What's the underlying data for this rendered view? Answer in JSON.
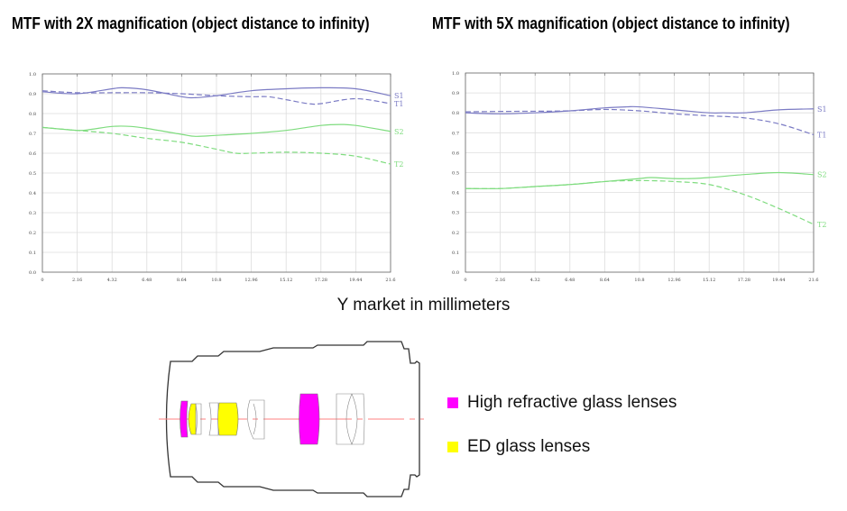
{
  "colors": {
    "series1": "#7b7bc4",
    "series2": "#7fdc7f",
    "grid": "#dddddd",
    "high_refractive": "#ff00ff",
    "ed": "#ffff00",
    "axis_line": "#ff8080"
  },
  "chart_data": [
    {
      "type": "line",
      "title": "MTF with 2X magnification (object distance to infinity)",
      "xlim": [
        0,
        21.6
      ],
      "ylim": [
        0,
        1.0
      ],
      "grid": true,
      "x_ticks": [
        "0",
        "2.16",
        "4.32",
        "6.48",
        "8.64",
        "10.8",
        "12.96",
        "15.12",
        "17.28",
        "19.44",
        "21.6"
      ],
      "y_ticks": [
        "0.0",
        "0.1",
        "0.2",
        "0.3",
        "0.4",
        "0.5",
        "0.6",
        "0.7",
        "0.8",
        "0.9",
        "1.0"
      ],
      "series": [
        {
          "name": "S1",
          "style": "solid",
          "color": "series1",
          "x": [
            0,
            2.16,
            4.32,
            5,
            6.48,
            8.64,
            9.5,
            10.8,
            12.96,
            15.12,
            17.28,
            19.44,
            21.6
          ],
          "y": [
            0.91,
            0.9,
            0.925,
            0.93,
            0.92,
            0.885,
            0.88,
            0.89,
            0.915,
            0.925,
            0.93,
            0.925,
            0.89
          ]
        },
        {
          "name": "T1",
          "style": "dashed",
          "color": "series1",
          "x": [
            0,
            2.16,
            4.32,
            6.48,
            8.64,
            10.8,
            12.96,
            14,
            15.12,
            16.5,
            17.28,
            19.44,
            21.6
          ],
          "y": [
            0.915,
            0.905,
            0.905,
            0.905,
            0.9,
            0.89,
            0.885,
            0.885,
            0.87,
            0.85,
            0.85,
            0.875,
            0.85
          ]
        },
        {
          "name": "S2",
          "style": "solid",
          "color": "series2",
          "x": [
            0,
            2.16,
            3,
            4.32,
            5.5,
            6.48,
            8.64,
            9.5,
            10.8,
            12.96,
            15.12,
            17.28,
            18.5,
            19.44,
            21.6
          ],
          "y": [
            0.73,
            0.715,
            0.72,
            0.735,
            0.735,
            0.725,
            0.695,
            0.685,
            0.69,
            0.7,
            0.715,
            0.74,
            0.745,
            0.74,
            0.71
          ]
        },
        {
          "name": "T2",
          "style": "dashed",
          "color": "series2",
          "x": [
            0,
            2.16,
            4.32,
            6.48,
            8.64,
            10.8,
            12,
            12.96,
            15.12,
            17.28,
            19.44,
            21.6
          ],
          "y": [
            0.73,
            0.715,
            0.7,
            0.675,
            0.655,
            0.62,
            0.6,
            0.6,
            0.605,
            0.6,
            0.585,
            0.545
          ]
        }
      ]
    },
    {
      "type": "line",
      "title": "MTF with 5X magnification (object distance to infinity)",
      "xlim": [
        0,
        21.6
      ],
      "ylim": [
        0,
        1.0
      ],
      "grid": true,
      "x_ticks": [
        "0",
        "2.16",
        "4.32",
        "6.48",
        "8.64",
        "10.8",
        "12.96",
        "15.12",
        "17.28",
        "19.44",
        "21.6"
      ],
      "y_ticks": [
        "0.0",
        "0.1",
        "0.2",
        "0.3",
        "0.4",
        "0.5",
        "0.6",
        "0.7",
        "0.8",
        "0.9",
        "1.0"
      ],
      "series": [
        {
          "name": "S1",
          "style": "solid",
          "color": "series1",
          "x": [
            0,
            2.16,
            4.32,
            6.48,
            8.64,
            10,
            10.8,
            12.96,
            15.12,
            16,
            17.28,
            19.44,
            21.6
          ],
          "y": [
            0.8,
            0.795,
            0.8,
            0.81,
            0.825,
            0.83,
            0.83,
            0.815,
            0.8,
            0.8,
            0.8,
            0.815,
            0.82
          ]
        },
        {
          "name": "T1",
          "style": "dashed",
          "color": "series1",
          "x": [
            0,
            2.16,
            4.32,
            6.48,
            8.64,
            10.8,
            12.96,
            15.12,
            17.28,
            19.44,
            21.6
          ],
          "y": [
            0.805,
            0.807,
            0.808,
            0.81,
            0.817,
            0.81,
            0.795,
            0.785,
            0.775,
            0.745,
            0.69
          ]
        },
        {
          "name": "S2",
          "style": "solid",
          "color": "series2",
          "x": [
            0,
            2.16,
            4.32,
            6.48,
            8.64,
            10.8,
            11.5,
            12.96,
            14,
            15.12,
            17.28,
            19.44,
            21.6
          ],
          "y": [
            0.42,
            0.42,
            0.43,
            0.44,
            0.455,
            0.47,
            0.475,
            0.47,
            0.47,
            0.475,
            0.49,
            0.5,
            0.49
          ]
        },
        {
          "name": "T2",
          "style": "dashed",
          "color": "series2",
          "x": [
            0,
            2.16,
            4.32,
            6.48,
            8.64,
            10.8,
            12.96,
            15.12,
            17.28,
            19.44,
            21.6
          ],
          "y": [
            0.42,
            0.42,
            0.43,
            0.44,
            0.455,
            0.46,
            0.455,
            0.44,
            0.39,
            0.32,
            0.24
          ]
        }
      ]
    }
  ],
  "xlabel": "Y market in millimeters",
  "legend": [
    {
      "label": "High refractive glass lenses",
      "color": "high_refractive"
    },
    {
      "label": "ED glass lenses",
      "color": "ed"
    }
  ]
}
